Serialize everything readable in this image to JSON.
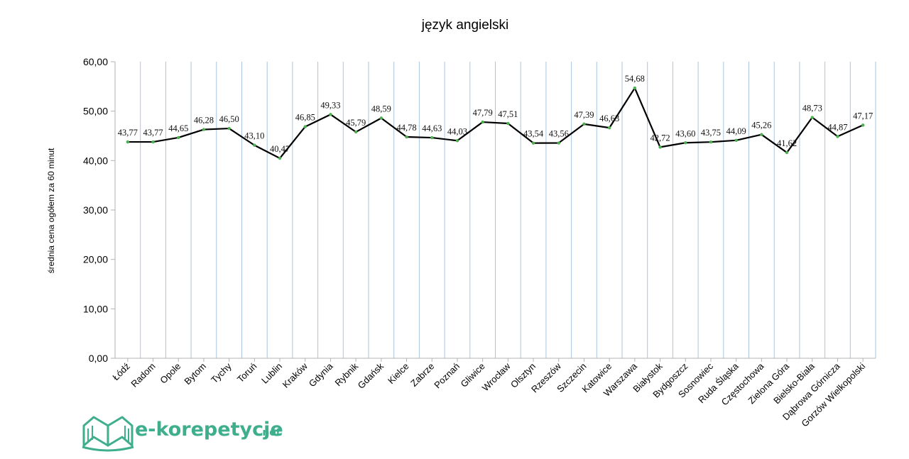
{
  "chart_data": {
    "type": "line",
    "title": "język angielski",
    "xlabel": "",
    "ylabel": "średnia cena ogółem za 60 minut",
    "ylim": [
      0,
      60
    ],
    "yticks": [
      "0,00",
      "10,00",
      "20,00",
      "30,00",
      "40,00",
      "50,00",
      "60,00"
    ],
    "grid": "vertical",
    "legend": "none",
    "categories": [
      "Łódź",
      "Radom",
      "Opole",
      "Bytom",
      "Tychy",
      "Toruń",
      "Lublin",
      "Kraków",
      "Gdynia",
      "Rybnik",
      "Gdańsk",
      "Kielce",
      "Zabrze",
      "Poznań",
      "Gliwice",
      "Wrocław",
      "Olsztyn",
      "Rzeszów",
      "Szczecin",
      "Katowice",
      "Warszawa",
      "Białystok",
      "Bydgoszcz",
      "Sosnowiec",
      "Ruda Śląska",
      "Częstochowa",
      "Zielona Góra",
      "Bielsko-Biała",
      "Dąbrowa Górnicza",
      "Gorzów Wielkopolski"
    ],
    "values": [
      43.77,
      43.77,
      44.65,
      46.28,
      46.5,
      43.1,
      40.47,
      46.85,
      49.33,
      45.79,
      48.59,
      44.78,
      44.63,
      44.03,
      47.79,
      47.51,
      43.54,
      43.56,
      47.39,
      46.63,
      54.68,
      42.72,
      43.6,
      43.75,
      44.09,
      45.26,
      41.62,
      48.73,
      44.87,
      47.17
    ],
    "value_labels": [
      "43,77",
      "43,77",
      "44,65",
      "46,28",
      "46,50",
      "43,10",
      "40,47",
      "46,85",
      "49,33",
      "45,79",
      "48,59",
      "44,78",
      "44,63",
      "44,03",
      "47,79",
      "47,51",
      "43,54",
      "43,56",
      "47,39",
      "46,63",
      "54,68",
      "42,72",
      "43,60",
      "43,75",
      "44,09",
      "45,26",
      "41,62",
      "48,73",
      "44,87",
      "47,17"
    ],
    "colors": {
      "line": "#000000",
      "marker": "#4caf50",
      "grid": "#a9c4e0"
    }
  },
  "logo": {
    "main": "e-korepetycje",
    "suffix": ".net",
    "color": "#3fae8c"
  }
}
